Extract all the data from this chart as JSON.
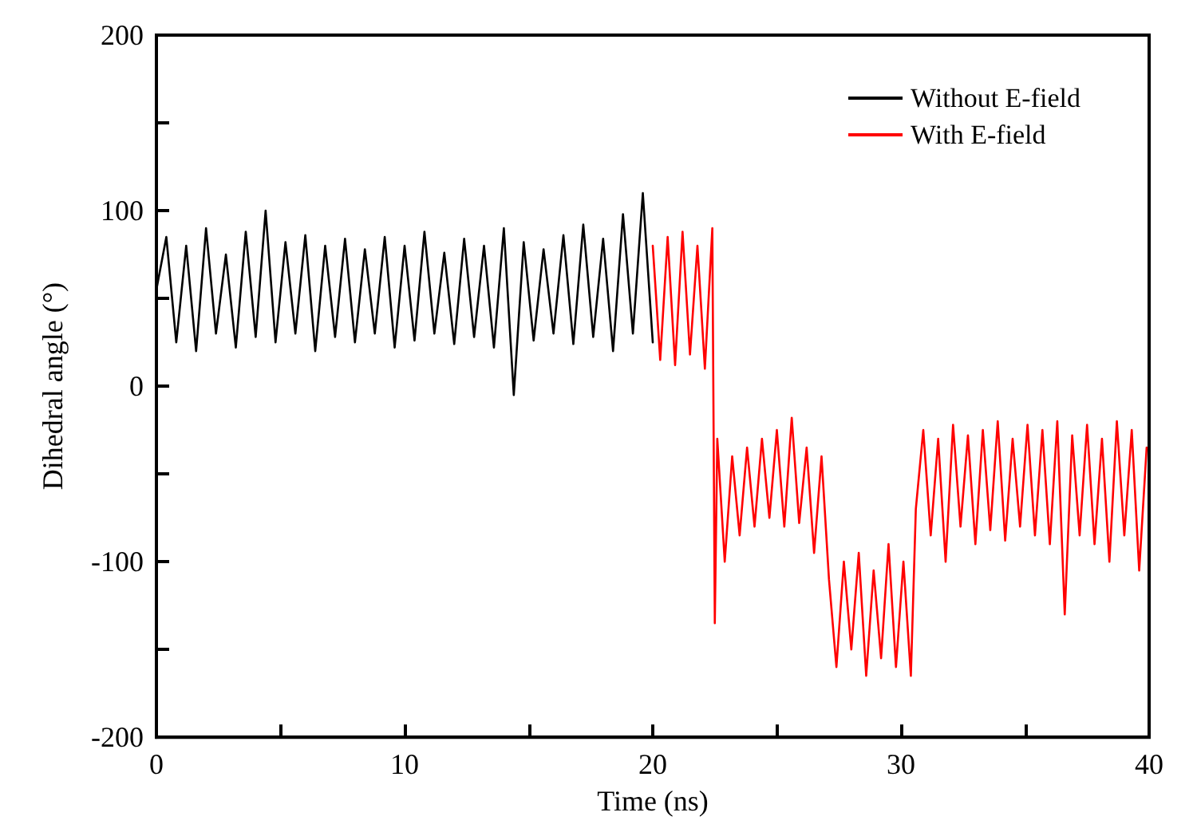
{
  "chart_data": {
    "type": "line",
    "xlabel": "Time (ns)",
    "ylabel": "Dihedral angle (°)",
    "xlim": [
      0,
      40
    ],
    "ylim": [
      -200,
      200
    ],
    "xticks": [
      0,
      {
        "value": 5,
        "label": null
      },
      10,
      {
        "value": 15,
        "label": null
      },
      20,
      {
        "value": 25,
        "label": null
      },
      30,
      {
        "value": 35,
        "label": null
      },
      40
    ],
    "yticks": [
      -200,
      {
        "value": -150,
        "label": null
      },
      -100,
      {
        "value": -50,
        "label": null
      },
      0,
      {
        "value": 50,
        "label": null
      },
      100,
      {
        "value": 150,
        "label": null
      },
      200
    ],
    "grid": false,
    "legend": "top right",
    "marker": "none",
    "line_style": "solid",
    "series": [
      {
        "name": "Without E-field",
        "color": "#000000",
        "x": [
          0,
          0.4,
          0.8,
          1.2,
          1.6,
          2,
          2.4,
          2.8,
          3.2,
          3.6,
          4,
          4.4,
          4.8,
          5.2,
          5.6,
          6,
          6.4,
          6.8,
          7.2,
          7.6,
          8,
          8.4,
          8.8,
          9.2,
          9.6,
          10,
          10.4,
          10.8,
          11.2,
          11.6,
          12,
          12.4,
          12.8,
          13.2,
          13.6,
          14,
          14.4,
          14.8,
          15.2,
          15.6,
          16,
          16.4,
          16.8,
          17.2,
          17.6,
          18,
          18.4,
          18.8,
          19.2,
          19.6,
          20
        ],
        "values": [
          55,
          85,
          25,
          80,
          20,
          90,
          30,
          75,
          22,
          88,
          28,
          100,
          25,
          82,
          30,
          86,
          20,
          80,
          28,
          84,
          25,
          78,
          30,
          85,
          22,
          80,
          26,
          88,
          30,
          76,
          24,
          84,
          28,
          80,
          22,
          90,
          -5,
          82,
          26,
          78,
          30,
          86,
          24,
          92,
          28,
          84,
          20,
          98,
          30,
          110,
          25
        ]
      },
      {
        "name": "With E-field",
        "color": "#ff0000",
        "x": [
          20,
          20.3,
          20.6,
          20.9,
          21.2,
          21.5,
          21.8,
          22.1,
          22.4,
          22.5,
          22.6,
          22.9,
          23.2,
          23.5,
          23.8,
          24.1,
          24.4,
          24.7,
          25,
          25.3,
          25.6,
          25.9,
          26.2,
          26.5,
          26.8,
          27.1,
          27.4,
          27.7,
          28,
          28.3,
          28.6,
          28.9,
          29.2,
          29.5,
          29.8,
          30.1,
          30.4,
          30.6,
          30.9,
          31.2,
          31.5,
          31.8,
          32.1,
          32.4,
          32.7,
          33,
          33.3,
          33.6,
          33.9,
          34.2,
          34.5,
          34.8,
          35.1,
          35.4,
          35.7,
          36,
          36.3,
          36.6,
          36.9,
          37.2,
          37.5,
          37.8,
          38.1,
          38.4,
          38.7,
          39,
          39.3,
          39.6,
          39.9
        ],
        "values": [
          80,
          15,
          85,
          12,
          88,
          18,
          80,
          10,
          90,
          -135,
          -30,
          -100,
          -40,
          -85,
          -35,
          -80,
          -30,
          -75,
          -25,
          -80,
          -18,
          -78,
          -35,
          -95,
          -40,
          -110,
          -160,
          -100,
          -150,
          -95,
          -165,
          -105,
          -155,
          -90,
          -160,
          -100,
          -165,
          -70,
          -25,
          -85,
          -30,
          -100,
          -22,
          -80,
          -28,
          -90,
          -25,
          -82,
          -20,
          -88,
          -30,
          -80,
          -22,
          -85,
          -25,
          -90,
          -20,
          -130,
          -28,
          -85,
          -22,
          -90,
          -30,
          -100,
          -20,
          -85,
          -25,
          -105,
          -35
        ]
      }
    ]
  }
}
